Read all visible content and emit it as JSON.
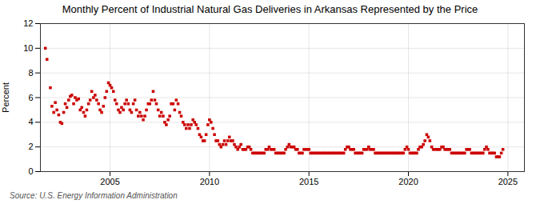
{
  "chart_data": {
    "type": "scatter",
    "title": "Monthly Percent of Industrial Natural Gas Deliveries in Arkansas Represented by the Price",
    "ylabel": "Percent",
    "source": "Source: U.S. Energy Information Administration",
    "xlim": [
      2001.5,
      2025.83
    ],
    "ylim": [
      0,
      12
    ],
    "xticks": [
      2005,
      2010,
      2015,
      2020,
      2025
    ],
    "yticks": [
      0,
      2,
      4,
      6,
      8,
      10,
      12
    ],
    "color": "#cc0000",
    "marker": "square",
    "grid": true,
    "x": [
      2001.75,
      2001.83,
      2002.0,
      2002.08,
      2002.17,
      2002.25,
      2002.33,
      2002.42,
      2002.5,
      2002.58,
      2002.67,
      2002.75,
      2002.83,
      2002.92,
      2003.0,
      2003.08,
      2003.17,
      2003.25,
      2003.33,
      2003.42,
      2003.5,
      2003.58,
      2003.67,
      2003.75,
      2003.83,
      2003.92,
      2004.0,
      2004.08,
      2004.17,
      2004.25,
      2004.33,
      2004.42,
      2004.5,
      2004.58,
      2004.67,
      2004.75,
      2004.83,
      2004.92,
      2005.0,
      2005.08,
      2005.17,
      2005.25,
      2005.33,
      2005.42,
      2005.5,
      2005.58,
      2005.67,
      2005.75,
      2005.83,
      2005.92,
      2006.0,
      2006.08,
      2006.17,
      2006.25,
      2006.33,
      2006.42,
      2006.5,
      2006.58,
      2006.67,
      2006.75,
      2006.83,
      2006.92,
      2007.0,
      2007.08,
      2007.17,
      2007.25,
      2007.33,
      2007.42,
      2007.5,
      2007.58,
      2007.67,
      2007.75,
      2007.83,
      2007.92,
      2008.0,
      2008.08,
      2008.17,
      2008.25,
      2008.33,
      2008.42,
      2008.5,
      2008.58,
      2008.67,
      2008.75,
      2008.83,
      2008.92,
      2009.0,
      2009.08,
      2009.17,
      2009.25,
      2009.33,
      2009.42,
      2009.5,
      2009.58,
      2009.67,
      2009.75,
      2009.83,
      2009.92,
      2010.0,
      2010.08,
      2010.17,
      2010.25,
      2010.33,
      2010.42,
      2010.5,
      2010.58,
      2010.67,
      2010.75,
      2010.83,
      2010.92,
      2011.0,
      2011.08,
      2011.17,
      2011.25,
      2011.33,
      2011.42,
      2011.5,
      2011.58,
      2011.67,
      2011.75,
      2011.83,
      2011.92,
      2012.0,
      2012.08,
      2012.17,
      2012.25,
      2012.33,
      2012.42,
      2012.5,
      2012.58,
      2012.67,
      2012.75,
      2012.83,
      2012.92,
      2013.0,
      2013.08,
      2013.17,
      2013.25,
      2013.33,
      2013.42,
      2013.5,
      2013.58,
      2013.67,
      2013.75,
      2013.83,
      2013.92,
      2014.0,
      2014.08,
      2014.17,
      2014.25,
      2014.33,
      2014.42,
      2014.5,
      2014.58,
      2014.67,
      2014.75,
      2014.83,
      2014.92,
      2015.0,
      2015.08,
      2015.17,
      2015.25,
      2015.33,
      2015.42,
      2015.5,
      2015.58,
      2015.67,
      2015.75,
      2015.83,
      2015.92,
      2016.0,
      2016.08,
      2016.17,
      2016.25,
      2016.33,
      2016.42,
      2016.5,
      2016.58,
      2016.67,
      2016.75,
      2016.83,
      2016.92,
      2017.0,
      2017.08,
      2017.17,
      2017.25,
      2017.33,
      2017.42,
      2017.5,
      2017.58,
      2017.67,
      2017.75,
      2017.83,
      2017.92,
      2018.0,
      2018.08,
      2018.17,
      2018.25,
      2018.33,
      2018.42,
      2018.5,
      2018.58,
      2018.67,
      2018.75,
      2018.83,
      2018.92,
      2019.0,
      2019.08,
      2019.17,
      2019.25,
      2019.33,
      2019.42,
      2019.5,
      2019.58,
      2019.67,
      2019.75,
      2019.83,
      2019.92,
      2020.0,
      2020.08,
      2020.17,
      2020.25,
      2020.33,
      2020.42,
      2020.5,
      2020.58,
      2020.67,
      2020.75,
      2020.83,
      2020.92,
      2021.0,
      2021.08,
      2021.17,
      2021.25,
      2021.33,
      2021.42,
      2021.5,
      2021.58,
      2021.67,
      2021.75,
      2021.83,
      2021.92,
      2022.0,
      2022.08,
      2022.17,
      2022.25,
      2022.33,
      2022.42,
      2022.5,
      2022.58,
      2022.67,
      2022.75,
      2022.83,
      2022.92,
      2023.0,
      2023.08,
      2023.17,
      2023.25,
      2023.33,
      2023.42,
      2023.5,
      2023.58,
      2023.67,
      2023.75,
      2023.83,
      2023.92,
      2024.0,
      2024.08,
      2024.17,
      2024.25,
      2024.33,
      2024.42,
      2024.5,
      2024.58,
      2024.67,
      2024.75
    ],
    "values": [
      10.0,
      9.1,
      6.8,
      5.3,
      4.8,
      5.6,
      5.0,
      4.6,
      4.0,
      3.9,
      4.8,
      5.5,
      5.2,
      5.8,
      6.1,
      6.2,
      5.5,
      6.0,
      5.8,
      5.9,
      5.0,
      5.2,
      4.8,
      4.5,
      5.0,
      5.5,
      5.8,
      6.5,
      6.0,
      6.2,
      5.8,
      5.5,
      5.0,
      4.8,
      5.3,
      6.0,
      6.5,
      7.2,
      7.0,
      6.8,
      6.5,
      5.8,
      5.5,
      5.0,
      4.8,
      5.2,
      5.0,
      5.5,
      5.8,
      5.5,
      5.0,
      4.8,
      5.5,
      5.8,
      5.0,
      4.5,
      4.8,
      4.5,
      4.2,
      4.5,
      5.0,
      5.5,
      5.5,
      5.8,
      6.5,
      5.8,
      5.5,
      5.0,
      4.5,
      4.8,
      4.5,
      4.0,
      3.8,
      4.2,
      4.5,
      5.5,
      5.5,
      5.0,
      5.8,
      5.5,
      4.8,
      4.5,
      4.0,
      3.8,
      3.5,
      3.8,
      3.5,
      3.8,
      4.2,
      4.0,
      3.8,
      3.5,
      3.0,
      2.8,
      2.5,
      2.5,
      3.0,
      3.8,
      4.2,
      4.0,
      3.5,
      3.0,
      2.5,
      2.5,
      2.2,
      2.0,
      2.2,
      2.5,
      2.2,
      2.5,
      2.8,
      2.5,
      2.5,
      2.2,
      2.0,
      1.8,
      2.0,
      2.2,
      1.8,
      1.8,
      1.8,
      2.0,
      2.0,
      1.8,
      1.5,
      1.5,
      1.5,
      1.5,
      1.5,
      1.5,
      1.5,
      1.5,
      1.8,
      1.8,
      2.0,
      1.8,
      1.8,
      1.8,
      1.5,
      1.5,
      1.5,
      1.5,
      1.5,
      1.5,
      1.8,
      2.0,
      2.2,
      2.0,
      2.0,
      2.0,
      1.8,
      1.8,
      1.5,
      1.5,
      1.5,
      1.8,
      1.8,
      1.8,
      1.8,
      1.5,
      1.5,
      1.5,
      1.5,
      1.5,
      1.5,
      1.5,
      1.5,
      1.5,
      1.5,
      1.5,
      1.5,
      1.5,
      1.5,
      1.5,
      1.5,
      1.5,
      1.5,
      1.5,
      1.5,
      1.5,
      1.8,
      2.0,
      2.0,
      1.8,
      1.8,
      1.8,
      1.5,
      1.5,
      1.5,
      1.5,
      1.5,
      1.8,
      1.8,
      1.8,
      2.0,
      1.8,
      1.8,
      1.8,
      1.5,
      1.5,
      1.5,
      1.5,
      1.5,
      1.5,
      1.5,
      1.5,
      1.5,
      1.5,
      1.5,
      1.5,
      1.5,
      1.5,
      1.5,
      1.5,
      1.5,
      1.5,
      1.8,
      2.0,
      1.8,
      1.5,
      1.5,
      1.5,
      1.5,
      1.5,
      1.8,
      2.0,
      2.0,
      2.2,
      2.5,
      3.0,
      2.8,
      2.5,
      2.0,
      1.8,
      1.8,
      1.8,
      1.8,
      1.8,
      2.0,
      2.0,
      1.8,
      1.8,
      1.8,
      1.8,
      1.5,
      1.5,
      1.5,
      1.5,
      1.5,
      1.5,
      1.5,
      1.5,
      1.5,
      1.8,
      1.8,
      1.8,
      1.5,
      1.5,
      1.5,
      1.5,
      1.5,
      1.5,
      1.5,
      1.5,
      1.8,
      2.0,
      1.8,
      1.5,
      1.5,
      1.5,
      1.5,
      1.2,
      1.2,
      1.2,
      1.5,
      1.8
    ]
  }
}
